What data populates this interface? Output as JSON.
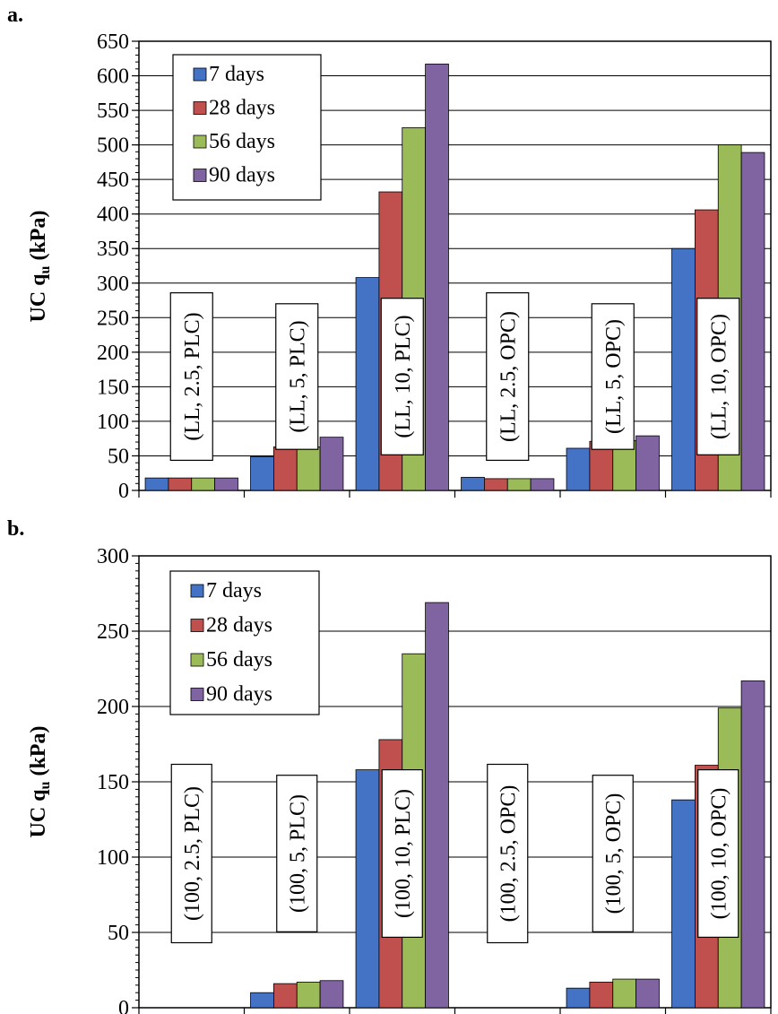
{
  "chart_data": [
    {
      "type": "bar",
      "panel_label": "a.",
      "ylabel_main": "UC q",
      "ylabel_sub": "u",
      "ylabel_unit": " (kPa)",
      "ylim": [
        0,
        650
      ],
      "yticks": [
        0,
        50,
        100,
        150,
        200,
        250,
        300,
        350,
        400,
        450,
        500,
        550,
        600,
        650
      ],
      "grid": "horizontal",
      "minor_ticks": 5,
      "legend_position": "top-left",
      "categories": [
        "(LL, 2.5, PLC)",
        "(LL, 5, PLC)",
        "(LL, 10, PLC)",
        "(LL, 2.5, OPC)",
        "(LL, 5, OPC)",
        "(LL, 10, OPC)"
      ],
      "series": [
        {
          "name": "7 days",
          "color": "#4472c4",
          "values": [
            18,
            49,
            308,
            19,
            61,
            350
          ]
        },
        {
          "name": "28 days",
          "color": "#c0504d",
          "values": [
            18,
            63,
            432,
            17,
            71,
            406
          ]
        },
        {
          "name": "56 days",
          "color": "#9bbb59",
          "values": [
            18,
            63,
            525,
            17,
            72,
            500
          ]
        },
        {
          "name": "90 days",
          "color": "#8064a2",
          "values": [
            18,
            77,
            617,
            17,
            79,
            489
          ]
        }
      ]
    },
    {
      "type": "bar",
      "panel_label": "b.",
      "ylabel_main": "UC q",
      "ylabel_sub": "u",
      "ylabel_unit": " (kPa)",
      "ylim": [
        0,
        300
      ],
      "yticks": [
        0,
        50,
        100,
        150,
        200,
        250,
        300
      ],
      "grid": "horizontal",
      "minor_ticks": 10,
      "legend_position": "top-left",
      "categories": [
        "(100, 2.5, PLC)",
        "(100, 5, PLC)",
        "(100, 10, PLC)",
        "(100, 2.5, OPC)",
        "(100, 5, OPC)",
        "(100, 10, OPC)"
      ],
      "series": [
        {
          "name": "7 days",
          "color": "#4472c4",
          "values": [
            0,
            10,
            158,
            0,
            13,
            138
          ]
        },
        {
          "name": "28 days",
          "color": "#c0504d",
          "values": [
            0,
            16,
            178,
            0,
            17,
            161
          ]
        },
        {
          "name": "56 days",
          "color": "#9bbb59",
          "values": [
            0,
            17,
            235,
            0,
            19,
            199
          ]
        },
        {
          "name": "90 days",
          "color": "#8064a2",
          "values": [
            0,
            18,
            269,
            0,
            19,
            217
          ]
        }
      ]
    }
  ]
}
